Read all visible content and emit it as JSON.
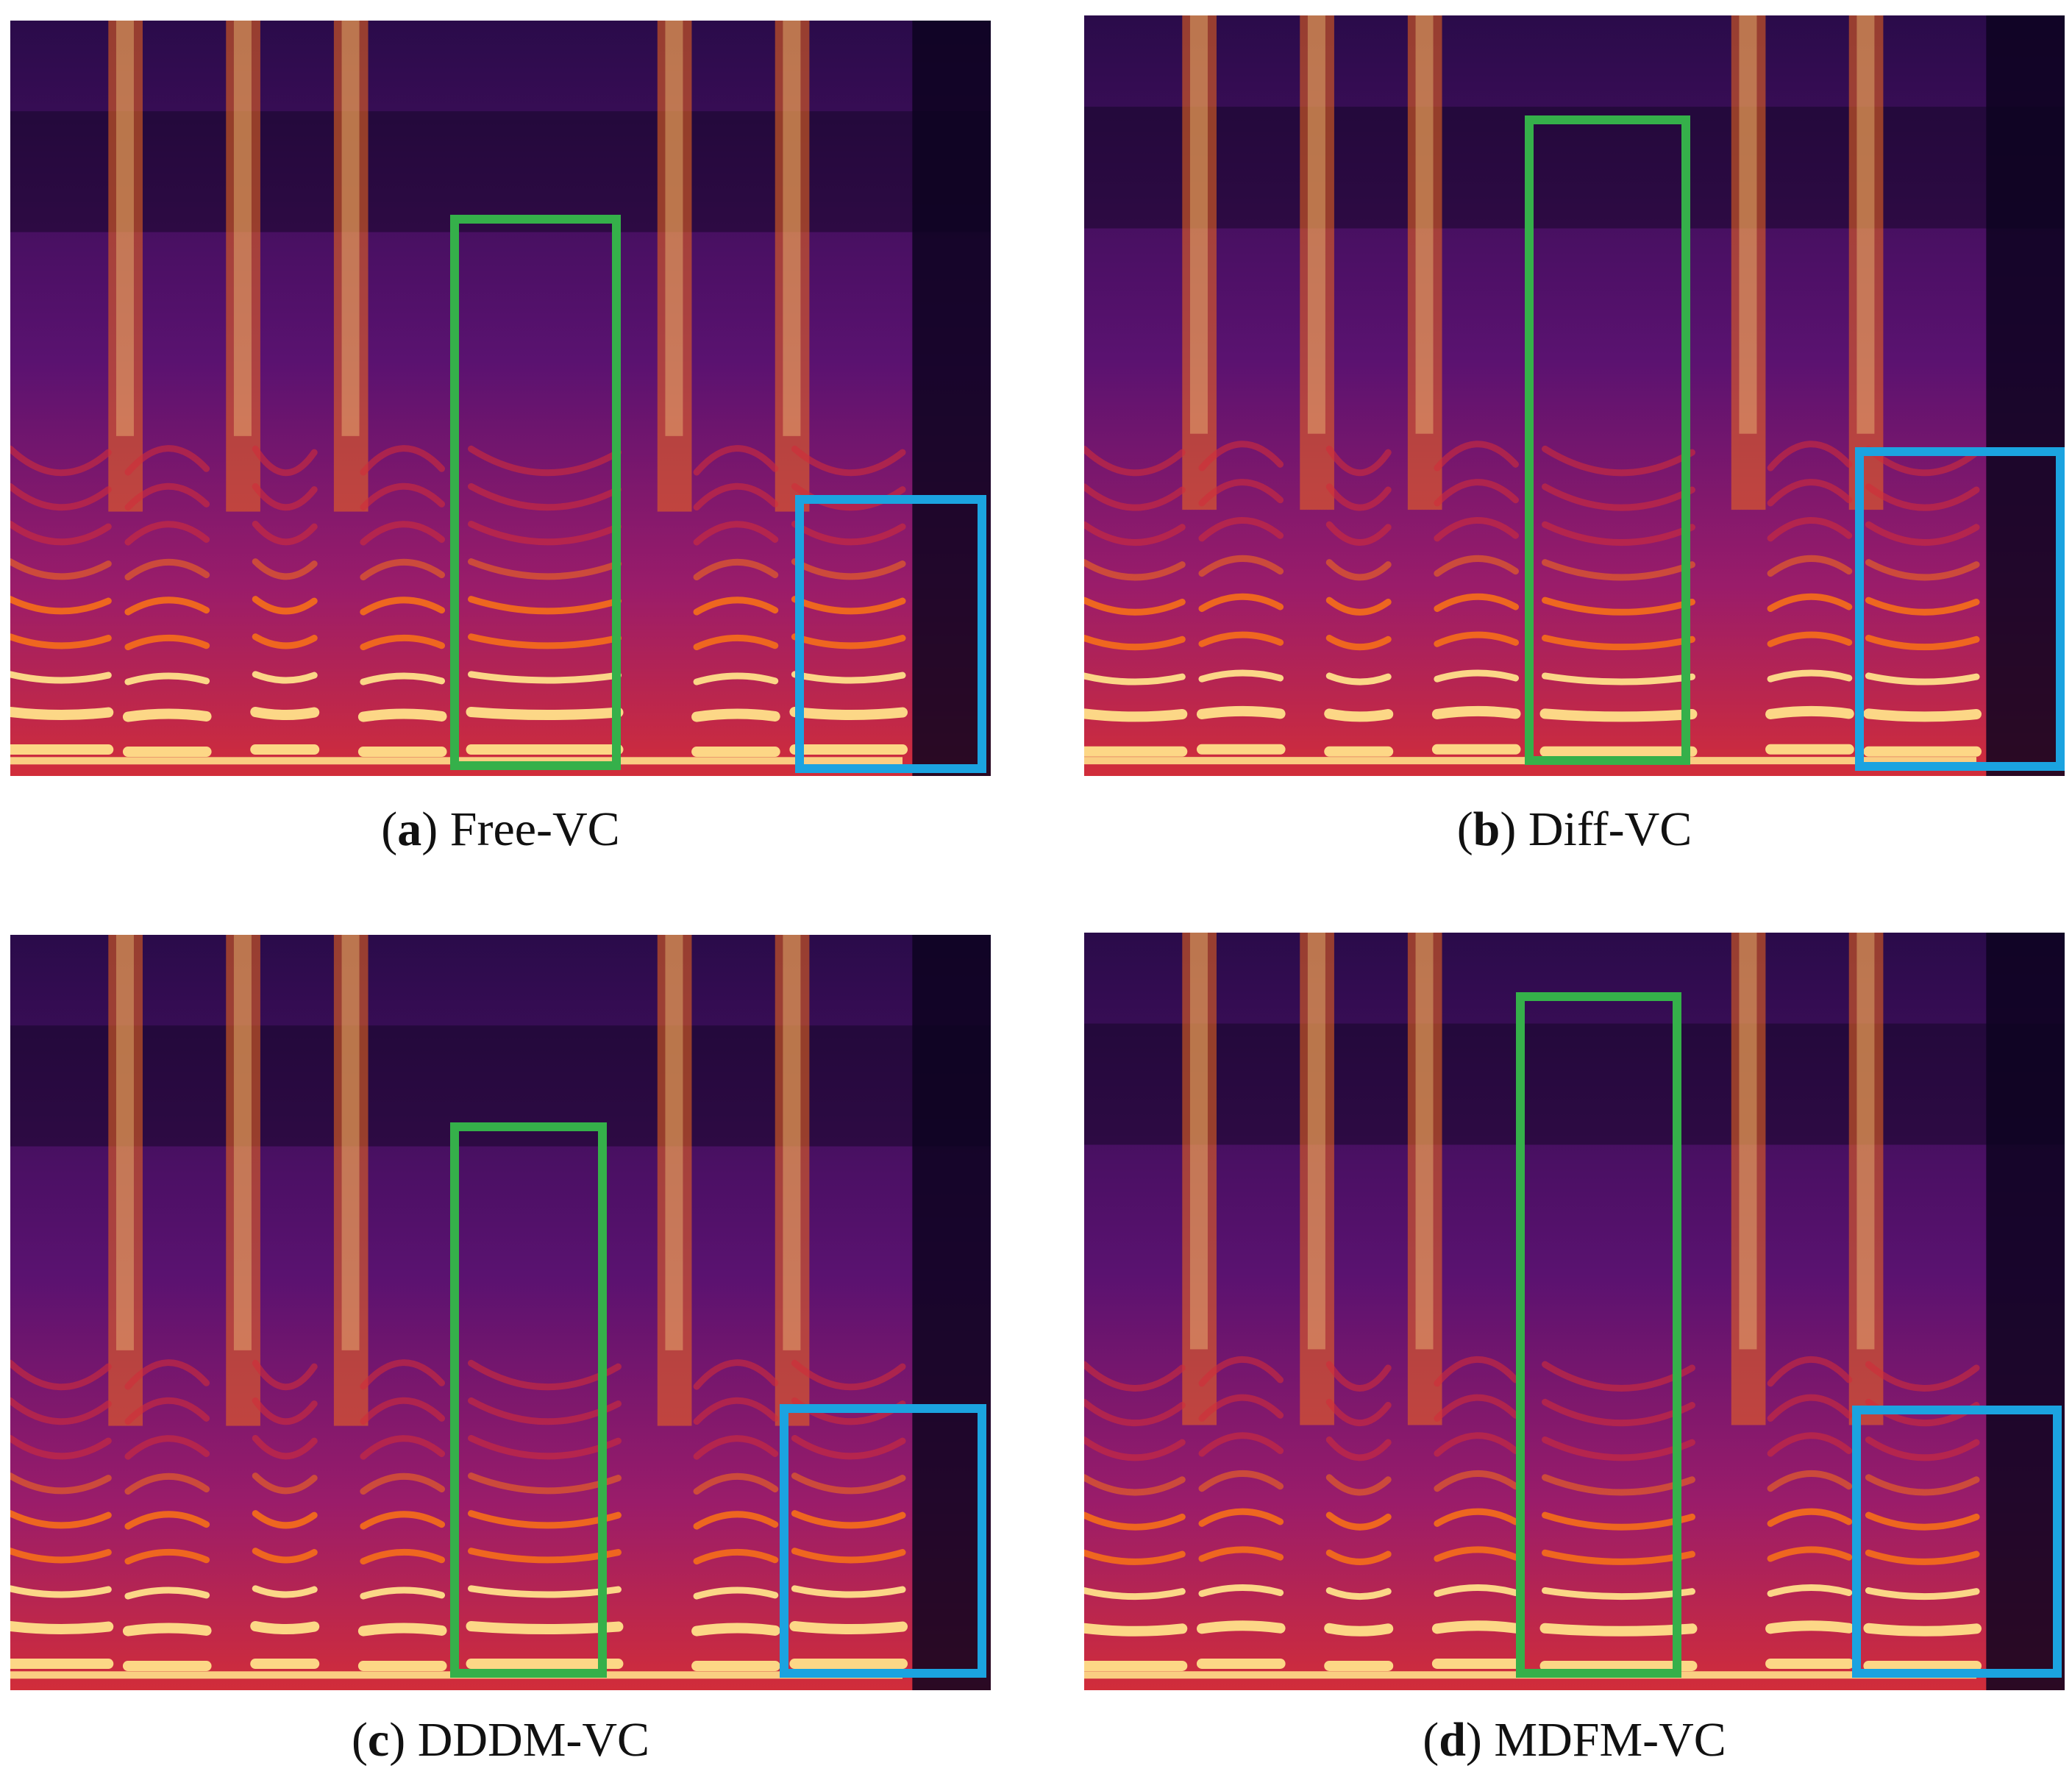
{
  "figure": {
    "panels": [
      {
        "id": "a",
        "tag": "a",
        "name": "Free-VC"
      },
      {
        "id": "b",
        "tag": "b",
        "name": "Diff-VC"
      },
      {
        "id": "c",
        "tag": "c",
        "name": "DDDM-VC"
      },
      {
        "id": "d",
        "tag": "d",
        "name": "MDFM-VC"
      }
    ],
    "colors": {
      "highlight_green": "#35b04a",
      "highlight_blue": "#1ba3e0",
      "colormap": [
        "#0d0420",
        "#2a0b4a",
        "#5a1270",
        "#9a1c6a",
        "#d12d3a",
        "#f26a1c",
        "#ffe08a"
      ]
    }
  }
}
